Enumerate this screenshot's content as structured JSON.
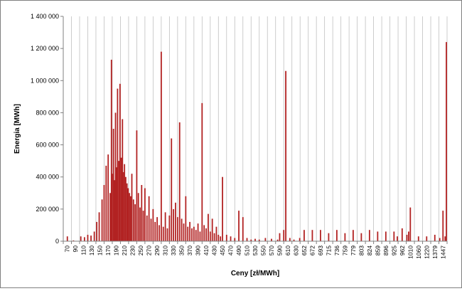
{
  "chart_data": {
    "type": "bar",
    "xlabel": "Ceny [zł/MWh]",
    "ylabel": "Energia [MWh]",
    "ylim": [
      0,
      1400000
    ],
    "yticks": [
      "0",
      "200 000",
      "400 000",
      "600 000",
      "800 000",
      "1 000 000",
      "1 200 000",
      "1 400 000"
    ],
    "y_tick_values": [
      0,
      200000,
      400000,
      600000,
      800000,
      1000000,
      1200000,
      1400000
    ],
    "x_tick_labels": [
      "70",
      "90",
      "110",
      "130",
      "150",
      "170",
      "190",
      "210",
      "230",
      "250",
      "270",
      "290",
      "310",
      "330",
      "350",
      "370",
      "390",
      "410",
      "430",
      "450",
      "470",
      "490",
      "510",
      "530",
      "550",
      "570",
      "590",
      "610",
      "630",
      "652",
      "672",
      "693",
      "715",
      "736",
      "759",
      "779",
      "803",
      "824",
      "859",
      "896",
      "925",
      "962",
      "1010",
      "1060",
      "1220",
      "1379",
      "1447"
    ],
    "grid": "vertical",
    "legend": "none",
    "color": "#b22222",
    "series": [
      {
        "categories": [
          "70",
          "85",
          "103",
          "112",
          "120",
          "128",
          "136",
          "142",
          "148",
          "155",
          "160",
          "165",
          "170",
          "175",
          "178",
          "180",
          "183",
          "186",
          "188",
          "190",
          "193",
          "196",
          "199",
          "202",
          "205",
          "207",
          "210",
          "213",
          "216",
          "219",
          "222",
          "225",
          "228",
          "232",
          "236",
          "240",
          "244",
          "248",
          "252",
          "256",
          "260",
          "265",
          "270",
          "275",
          "280",
          "285",
          "290",
          "295",
          "300",
          "305",
          "310",
          "315",
          "320",
          "325",
          "330",
          "335",
          "340",
          "345",
          "350",
          "355",
          "360",
          "365",
          "370",
          "375",
          "380",
          "385",
          "390",
          "395",
          "400",
          "405",
          "410",
          "415",
          "420",
          "425",
          "430",
          "435",
          "440",
          "445",
          "450",
          "460",
          "470",
          "480",
          "490",
          "500",
          "510",
          "520",
          "530",
          "540",
          "555",
          "570",
          "585",
          "590",
          "600",
          "605",
          "615",
          "625",
          "640",
          "652",
          "672",
          "693",
          "715",
          "736",
          "759",
          "779",
          "803",
          "824",
          "859",
          "896",
          "925",
          "940",
          "962",
          "990",
          "1000",
          "1010",
          "1060",
          "1220",
          "1379",
          "1420",
          "1447",
          "1460",
          "1480"
        ],
        "values": [
          30000,
          5000,
          30000,
          25000,
          40000,
          35000,
          60000,
          120000,
          180000,
          260000,
          350000,
          470000,
          540000,
          300000,
          1130000,
          420000,
          700000,
          380000,
          800000,
          460000,
          950000,
          500000,
          980000,
          520000,
          760000,
          430000,
          480000,
          400000,
          360000,
          330000,
          300000,
          280000,
          420000,
          260000,
          230000,
          690000,
          300000,
          210000,
          350000,
          190000,
          330000,
          160000,
          280000,
          140000,
          200000,
          120000,
          150000,
          100000,
          1180000,
          90000,
          180000,
          80000,
          160000,
          640000,
          200000,
          240000,
          150000,
          740000,
          140000,
          110000,
          280000,
          90000,
          120000,
          80000,
          90000,
          70000,
          110000,
          60000,
          860000,
          100000,
          80000,
          170000,
          60000,
          140000,
          50000,
          90000,
          40000,
          30000,
          400000,
          40000,
          30000,
          20000,
          190000,
          150000,
          20000,
          10000,
          15000,
          10000,
          20000,
          15000,
          10000,
          50000,
          70000,
          1060000,
          20000,
          10000,
          20000,
          70000,
          70000,
          70000,
          50000,
          70000,
          50000,
          70000,
          50000,
          70000,
          60000,
          60000,
          60000,
          30000,
          80000,
          40000,
          60000,
          210000,
          30000,
          30000,
          40000,
          20000,
          190000,
          30000,
          1240000
        ]
      }
    ]
  }
}
